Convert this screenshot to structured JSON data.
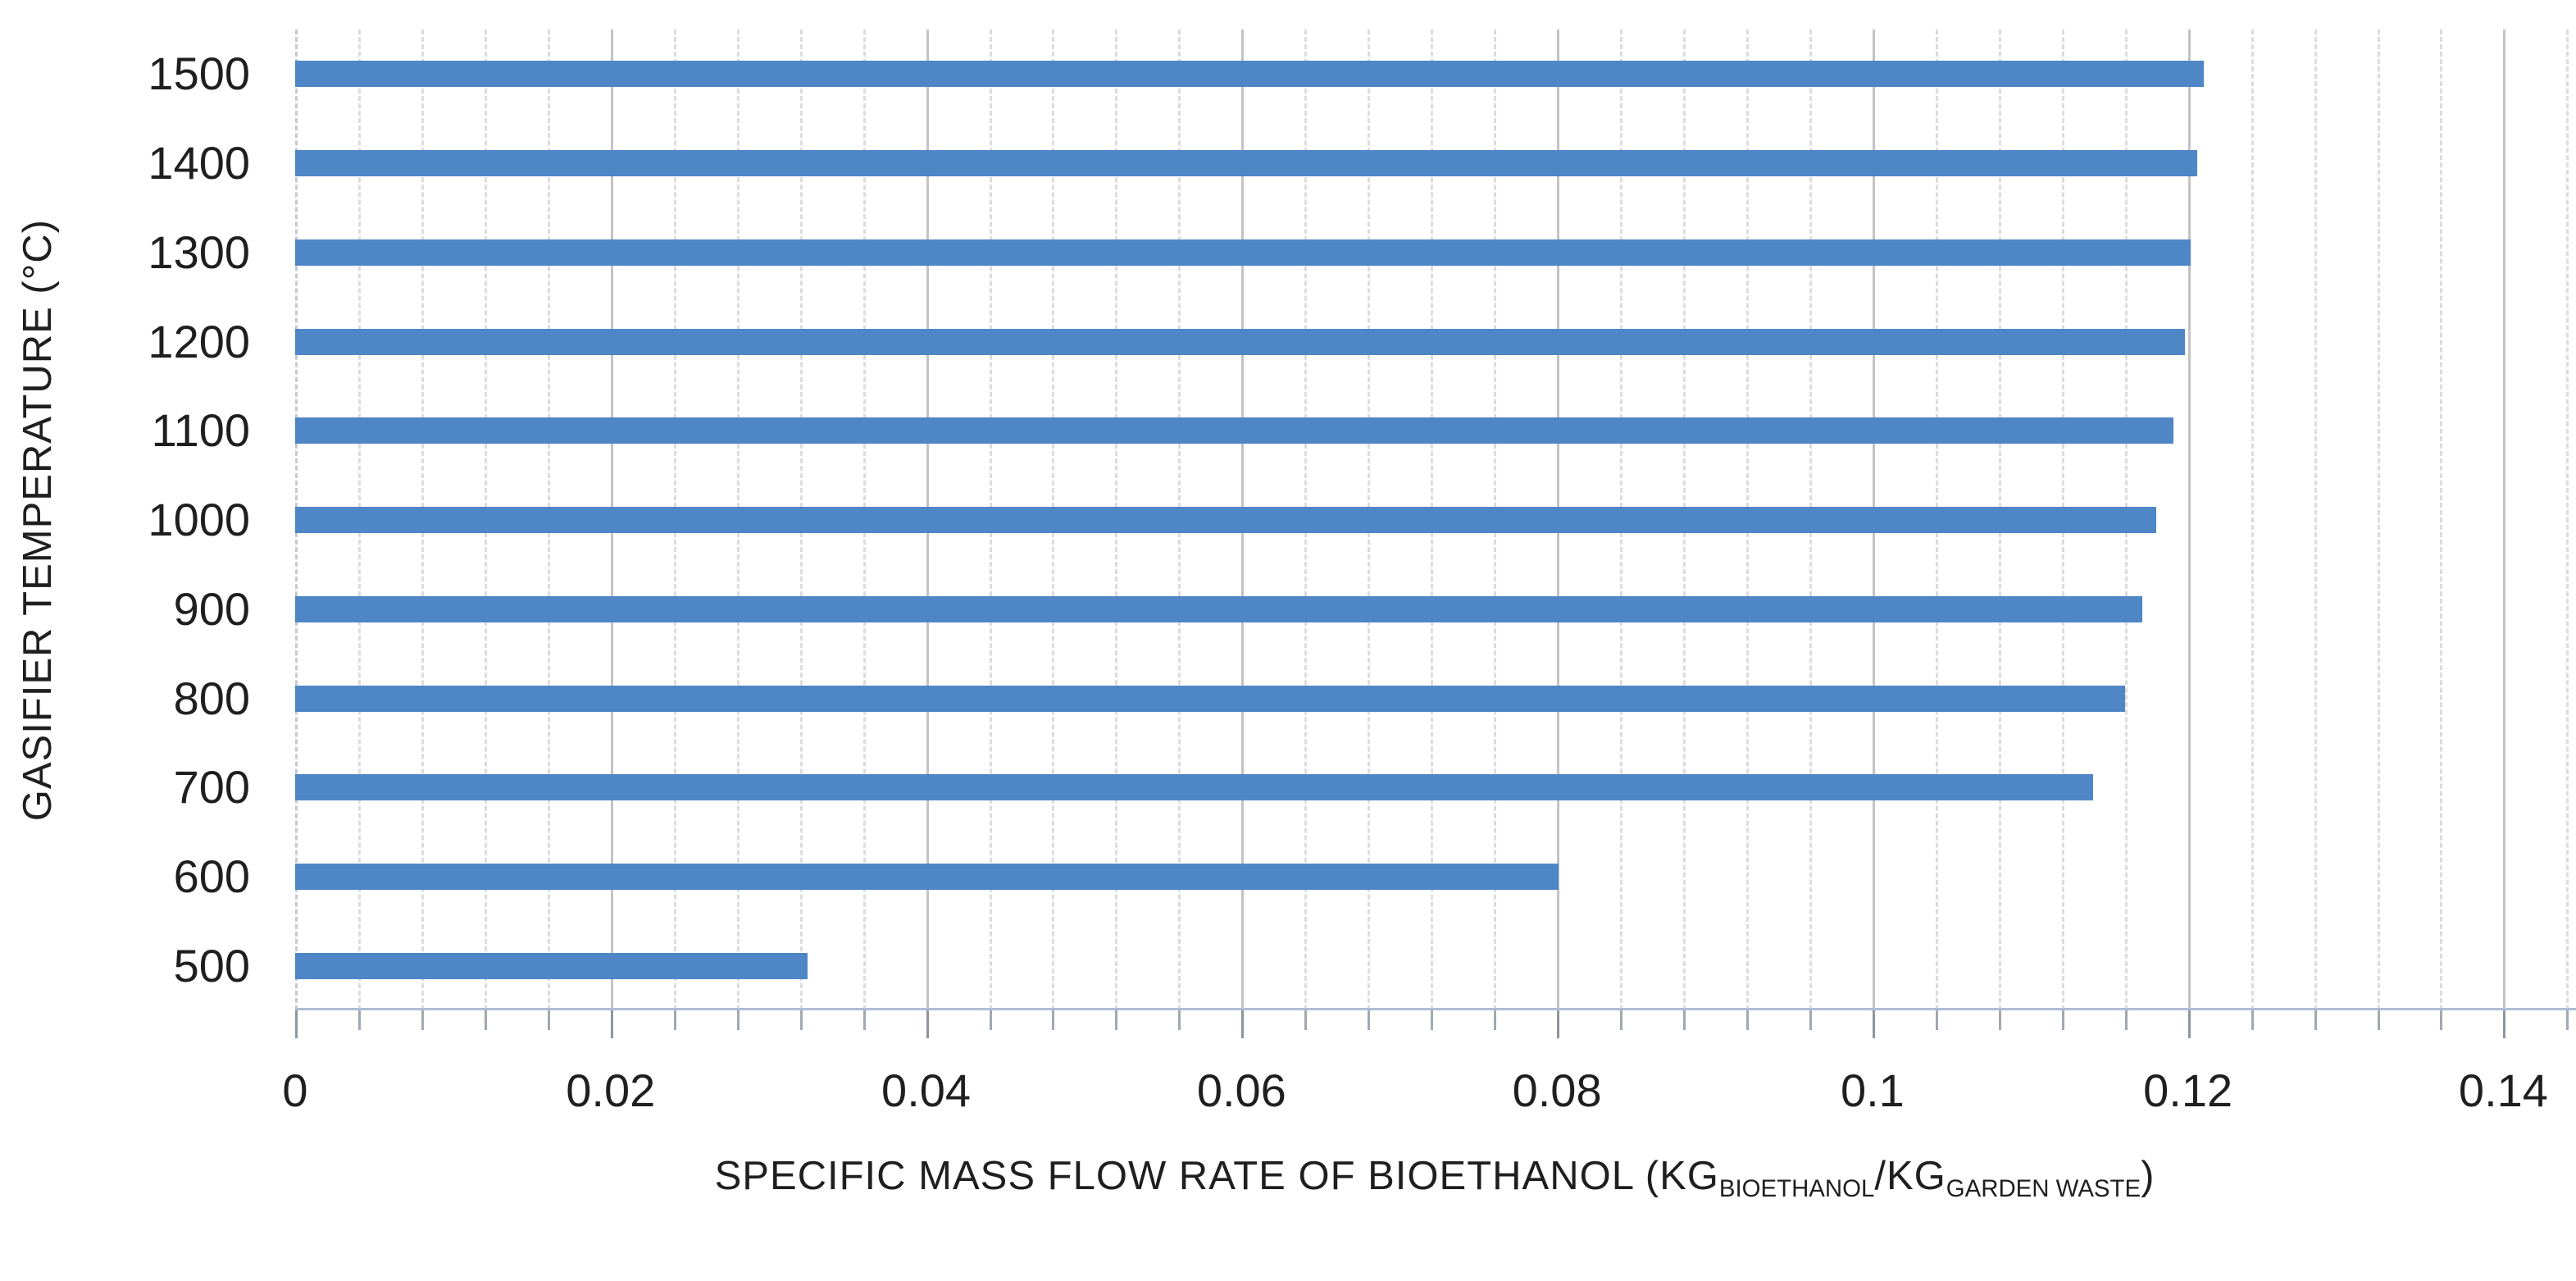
{
  "chart_data": {
    "type": "bar",
    "orientation": "horizontal",
    "title": "",
    "ylabel": "GASIFIER TEMPERATURE (°C)",
    "xlabel_segments": [
      {
        "text": "SPECIFIC MASS FLOW RATE OF BIOETHANOL (KG",
        "sub": false
      },
      {
        "text": "BIOETHANOL",
        "sub": true
      },
      {
        "text": "/KG",
        "sub": false
      },
      {
        "text": "GARDEN WASTE",
        "sub": true
      },
      {
        "text": ")",
        "sub": false
      }
    ],
    "categories": [
      "1500",
      "1400",
      "1300",
      "1200",
      "1100",
      "1000",
      "900",
      "800",
      "700",
      "600",
      "500"
    ],
    "values": [
      0.121,
      0.1206,
      0.1202,
      0.1198,
      0.1191,
      0.118,
      0.1171,
      0.116,
      0.114,
      0.0801,
      0.0325
    ],
    "xtick_values": [
      0,
      0.02,
      0.04,
      0.06,
      0.08,
      0.1,
      0.12,
      0.14
    ],
    "xtick_labels": [
      "0",
      "0.02",
      "0.04",
      "0.06",
      "0.08",
      "0.1",
      "0.12",
      "0.14"
    ],
    "xlim": [
      0,
      0.1445
    ],
    "major_unit": 0.02,
    "minor_unit": 0.004,
    "grid": {
      "major": "solid",
      "minor": "dashed"
    },
    "legend": "none",
    "colors": {
      "bar": "#4e86c6",
      "major_grid": "#c3c3c3",
      "minor_grid": "#dcdcdc",
      "x_axis_line": "#aebdd3",
      "y_axis_line": "#c6cad0",
      "tick_mark": "#a2a8b0",
      "text": "#1f1f1f"
    }
  }
}
